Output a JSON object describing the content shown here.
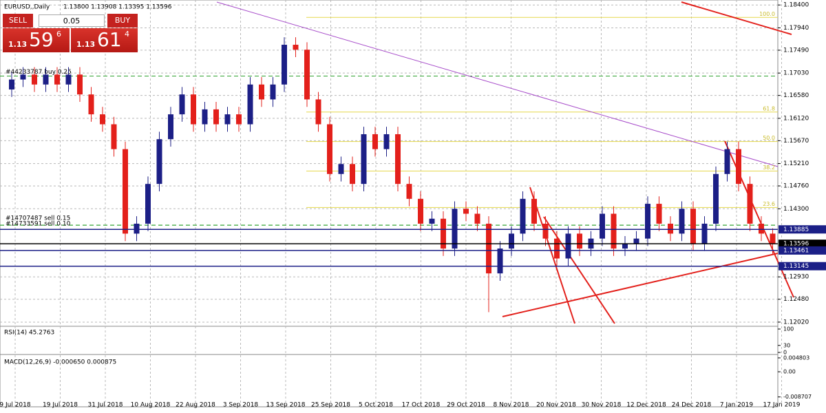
{
  "header": {
    "symbol": "EURUSD,,Daily",
    "ohlc": "1.13800 1.13908 1.13395 1.13596"
  },
  "trade_panel": {
    "sell": "SELL",
    "buy": "BUY",
    "lot": "0.05",
    "sell_price": {
      "big": "1.13",
      "pips": "59",
      "frac": "6"
    },
    "buy_price": {
      "big": "1.13",
      "pips": "61",
      "frac": "4"
    }
  },
  "chart_data": {
    "type": "candlestick",
    "open": [
      1.167,
      1.169,
      1.17,
      1.168,
      1.17,
      1.168,
      1.17,
      1.166,
      1.162,
      1.16,
      1.155,
      1.138,
      1.14,
      1.148,
      1.157,
      1.162,
      1.166,
      1.16,
      1.163,
      1.16,
      1.162,
      1.16,
      1.168,
      1.165,
      1.168,
      1.176,
      1.175,
      1.165,
      1.16,
      1.15,
      1.152,
      1.148,
      1.158,
      1.155,
      1.158,
      1.148,
      1.145,
      1.14,
      1.141,
      1.135,
      1.143,
      1.142,
      1.14,
      1.13,
      1.135,
      1.138,
      1.145,
      1.14,
      1.137,
      1.133,
      1.138,
      1.135,
      1.137,
      1.142,
      1.135,
      1.136,
      1.137,
      1.144,
      1.14,
      1.138,
      1.143,
      1.136,
      1.14,
      1.15,
      1.155,
      1.148,
      1.14,
      1.138
    ],
    "high": [
      1.1705,
      1.1715,
      1.1715,
      1.1715,
      1.1715,
      1.1715,
      1.1715,
      1.1675,
      1.1635,
      1.1615,
      1.1565,
      1.1415,
      1.1495,
      1.1585,
      1.1635,
      1.1675,
      1.1675,
      1.1645,
      1.1645,
      1.1635,
      1.1635,
      1.1695,
      1.1695,
      1.1695,
      1.1775,
      1.1775,
      1.1765,
      1.1665,
      1.1615,
      1.1535,
      1.1535,
      1.1595,
      1.1595,
      1.1595,
      1.1595,
      1.1495,
      1.1465,
      1.1425,
      1.1425,
      1.1445,
      1.1445,
      1.1435,
      1.1415,
      1.1365,
      1.1395,
      1.1465,
      1.1465,
      1.1415,
      1.1385,
      1.1395,
      1.1395,
      1.1385,
      1.1435,
      1.1435,
      1.1375,
      1.1385,
      1.1455,
      1.1455,
      1.1415,
      1.1445,
      1.1445,
      1.1415,
      1.1515,
      1.1565,
      1.1565,
      1.1495,
      1.1415,
      1.13908
    ],
    "low": [
      1.1655,
      1.1675,
      1.1665,
      1.1665,
      1.1665,
      1.1665,
      1.1645,
      1.1605,
      1.1585,
      1.1535,
      1.1365,
      1.1365,
      1.1385,
      1.1465,
      1.1555,
      1.1605,
      1.1585,
      1.1585,
      1.1585,
      1.1585,
      1.1585,
      1.1585,
      1.1635,
      1.1635,
      1.1665,
      1.1735,
      1.1635,
      1.1585,
      1.1485,
      1.1485,
      1.1465,
      1.1465,
      1.1535,
      1.1535,
      1.1465,
      1.1435,
      1.1385,
      1.1385,
      1.1335,
      1.1335,
      1.1405,
      1.1385,
      1.1222,
      1.1285,
      1.1335,
      1.1365,
      1.1385,
      1.1355,
      1.1315,
      1.1315,
      1.1335,
      1.1335,
      1.1355,
      1.1335,
      1.1335,
      1.1345,
      1.1355,
      1.1385,
      1.1365,
      1.1365,
      1.1345,
      1.1345,
      1.1385,
      1.1485,
      1.1465,
      1.1385,
      1.1365,
      1.13395
    ],
    "close": [
      1.169,
      1.17,
      1.168,
      1.17,
      1.168,
      1.17,
      1.166,
      1.162,
      1.16,
      1.155,
      1.138,
      1.14,
      1.148,
      1.157,
      1.162,
      1.166,
      1.16,
      1.163,
      1.16,
      1.162,
      1.16,
      1.168,
      1.165,
      1.168,
      1.176,
      1.175,
      1.165,
      1.16,
      1.15,
      1.152,
      1.148,
      1.158,
      1.155,
      1.158,
      1.148,
      1.145,
      1.14,
      1.141,
      1.135,
      1.143,
      1.142,
      1.14,
      1.13,
      1.135,
      1.138,
      1.145,
      1.14,
      1.137,
      1.133,
      1.138,
      1.135,
      1.137,
      1.142,
      1.135,
      1.136,
      1.137,
      1.144,
      1.14,
      1.138,
      1.143,
      1.136,
      1.14,
      1.15,
      1.155,
      1.148,
      1.14,
      1.138,
      1.13596
    ],
    "bull_color": "#1c1f86",
    "bear_color": "#e3201b",
    "grid": true,
    "ylim": [
      1.1195,
      1.185
    ],
    "yticks": [
      {
        "value": 1.184,
        "label": "1.18400"
      },
      {
        "value": 1.1794,
        "label": "1.17940"
      },
      {
        "value": 1.1749,
        "label": "1.17490"
      },
      {
        "value": 1.1703,
        "label": "1.17030"
      },
      {
        "value": 1.1658,
        "label": "1.16580"
      },
      {
        "value": 1.1612,
        "label": "1.16120"
      },
      {
        "value": 1.1567,
        "label": "1.15670"
      },
      {
        "value": 1.1521,
        "label": "1.15210"
      },
      {
        "value": 1.1476,
        "label": "1.14760"
      },
      {
        "value": 1.143,
        "label": "1.14300"
      },
      {
        "value": 1.1293,
        "label": "1.12930"
      },
      {
        "value": 1.1248,
        "label": "1.12480"
      },
      {
        "value": 1.1202,
        "label": "1.12020"
      }
    ],
    "levels": [
      {
        "value": 1.13885,
        "label": "1.13885",
        "color": "#1b1f87"
      },
      {
        "value": 1.13596,
        "label": "1.13596",
        "color": "#000000"
      },
      {
        "value": 1.13461,
        "label": "1.13461",
        "color": "#1b1f87"
      },
      {
        "value": 1.13145,
        "label": "1.13145",
        "color": "#1b1f87"
      }
    ],
    "fib_levels": [
      {
        "price": 1.1815,
        "label": "100.0"
      },
      {
        "price": 1.16246,
        "label": "61.8"
      },
      {
        "price": 1.15652,
        "label": "50.0"
      },
      {
        "price": 1.15058,
        "label": "38.2"
      },
      {
        "price": 1.14326,
        "label": "23.6"
      }
    ],
    "orders": [
      {
        "price": 1.1697,
        "label": "#44233787 buy 0.25"
      },
      {
        "price": 1.1397,
        "label": "#14707487 sell 0.15"
      },
      {
        "price": 1.1397,
        "label": "#14733591 sell 0.10"
      }
    ],
    "x_labels": [
      "9 Jul 2018",
      "19 Jul 2018",
      "31 Jul 2018",
      "10 Aug 2018",
      "22 Aug 2018",
      "3 Sep 2018",
      "13 Sep 2018",
      "25 Sep 2018",
      "5 Oct 2018",
      "17 Oct 2018",
      "29 Oct 2018",
      "8 Nov 2018",
      "20 Nov 2018",
      "30 Nov 2018",
      "12 Dec 2018",
      "24 Dec 2018",
      "7 Jan 2019",
      "17 Jan 2019"
    ]
  },
  "rsi": {
    "label": "RSI(14) 45.2763",
    "ylim": [
      0,
      100
    ],
    "yticks": [
      100,
      30,
      0
    ]
  },
  "macd": {
    "label": "MACD(12,26,9) -0.000650 0.000875",
    "ylim": [
      -0.0095,
      0.0055
    ],
    "yticks": [
      0.004803,
      {
        "value": 0,
        "label": "0.00"
      },
      -0.008707
    ]
  }
}
